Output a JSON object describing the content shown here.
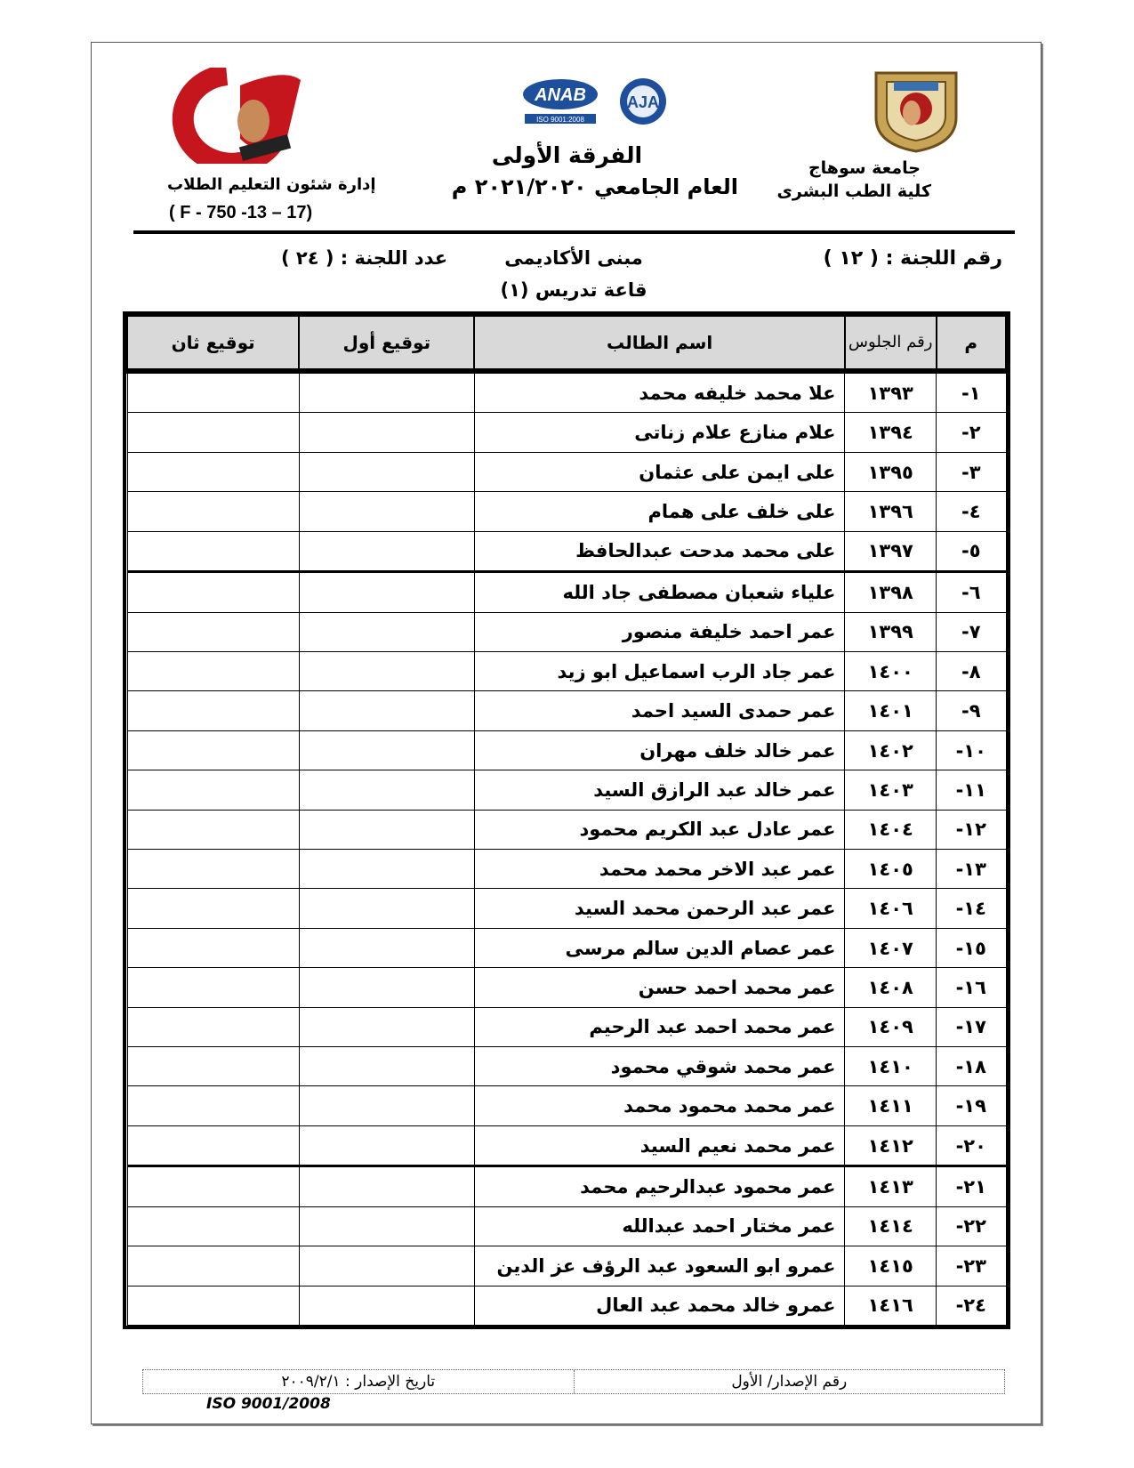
{
  "header": {
    "university_line1": "جامعة سوهاج",
    "university_line2": "كلية الطب البشرى",
    "level": "الفرقة الأولى",
    "academic_year": "العام الجامعي ٢٠٢١/٢٠٢٠ م",
    "department": "إدارة شئون التعليم الطلاب",
    "form_code": "( F - 750 -13 – 17)",
    "logo_left_text": "كلية الطب",
    "logo_center_text": [
      "ANAB",
      "AJA",
      "ISO 9001:2008"
    ]
  },
  "committee": {
    "number": "رقم اللجنة : ( ١٢ )",
    "building": "مبنى الأكاديمى",
    "hall": "قاعة تدريس (١)",
    "count": "عدد اللجنة : ( ٢٤ )"
  },
  "table": {
    "headers": [
      "م",
      "رقم الجلوس",
      "اسم الطالب",
      "توقيع أول",
      "توقيع ثان"
    ],
    "rows": [
      [
        "١-",
        "١٣٩٣",
        "علا محمد خليفه محمد"
      ],
      [
        "٢-",
        "١٣٩٤",
        "علام منازع علام زناتى"
      ],
      [
        "٣-",
        "١٣٩٥",
        "على ايمن على عثمان"
      ],
      [
        "٤-",
        "١٣٩٦",
        "على خلف على همام"
      ],
      [
        "٥-",
        "١٣٩٧",
        "على محمد مدحت عبدالحافظ"
      ],
      [
        "٦-",
        "١٣٩٨",
        "علياء شعبان مصطفى جاد الله"
      ],
      [
        "٧-",
        "١٣٩٩",
        "عمر احمد خليفة منصور"
      ],
      [
        "٨-",
        "١٤٠٠",
        "عمر جاد الرب اسماعيل ابو زيد"
      ],
      [
        "٩-",
        "١٤٠١",
        "عمر حمدى السيد احمد"
      ],
      [
        "١٠-",
        "١٤٠٢",
        "عمر خالد خلف مهران"
      ],
      [
        "١١-",
        "١٤٠٣",
        "عمر خالد عبد الرازق السيد"
      ],
      [
        "١٢-",
        "١٤٠٤",
        "عمر عادل عبد الكريم محمود"
      ],
      [
        "١٣-",
        "١٤٠٥",
        "عمر عبد الاخر محمد محمد"
      ],
      [
        "١٤-",
        "١٤٠٦",
        "عمر عبد الرحمن محمد السيد"
      ],
      [
        "١٥-",
        "١٤٠٧",
        "عمر عصام الدين سالم مرسى"
      ],
      [
        "١٦-",
        "١٤٠٨",
        "عمر محمد احمد حسن"
      ],
      [
        "١٧-",
        "١٤٠٩",
        "عمر محمد احمد عبد الرحيم"
      ],
      [
        "١٨-",
        "١٤١٠",
        "عمر محمد شوقي محمود"
      ],
      [
        "١٩-",
        "١٤١١",
        "عمر محمد محمود محمد"
      ],
      [
        "٢٠-",
        "١٤١٢",
        "عمر محمد نعيم السيد"
      ],
      [
        "٢١-",
        "١٤١٣",
        "عمر محمود عبدالرحيم محمد"
      ],
      [
        "٢٢-",
        "١٤١٤",
        "عمر مختار احمد عبدالله"
      ],
      [
        "٢٣-",
        "١٤١٥",
        "عمرو ابو السعود عبد الرؤف عز الدين"
      ],
      [
        "٢٤-",
        "١٤١٦",
        "عمرو خالد محمد عبد العال"
      ]
    ]
  },
  "footer": {
    "issue_number": "رقم الإصدار/ الأول",
    "issue_date": "تاريخ الإصدار : ٢٠٠٩/٢/١",
    "iso": "ISO 9001/2008"
  }
}
